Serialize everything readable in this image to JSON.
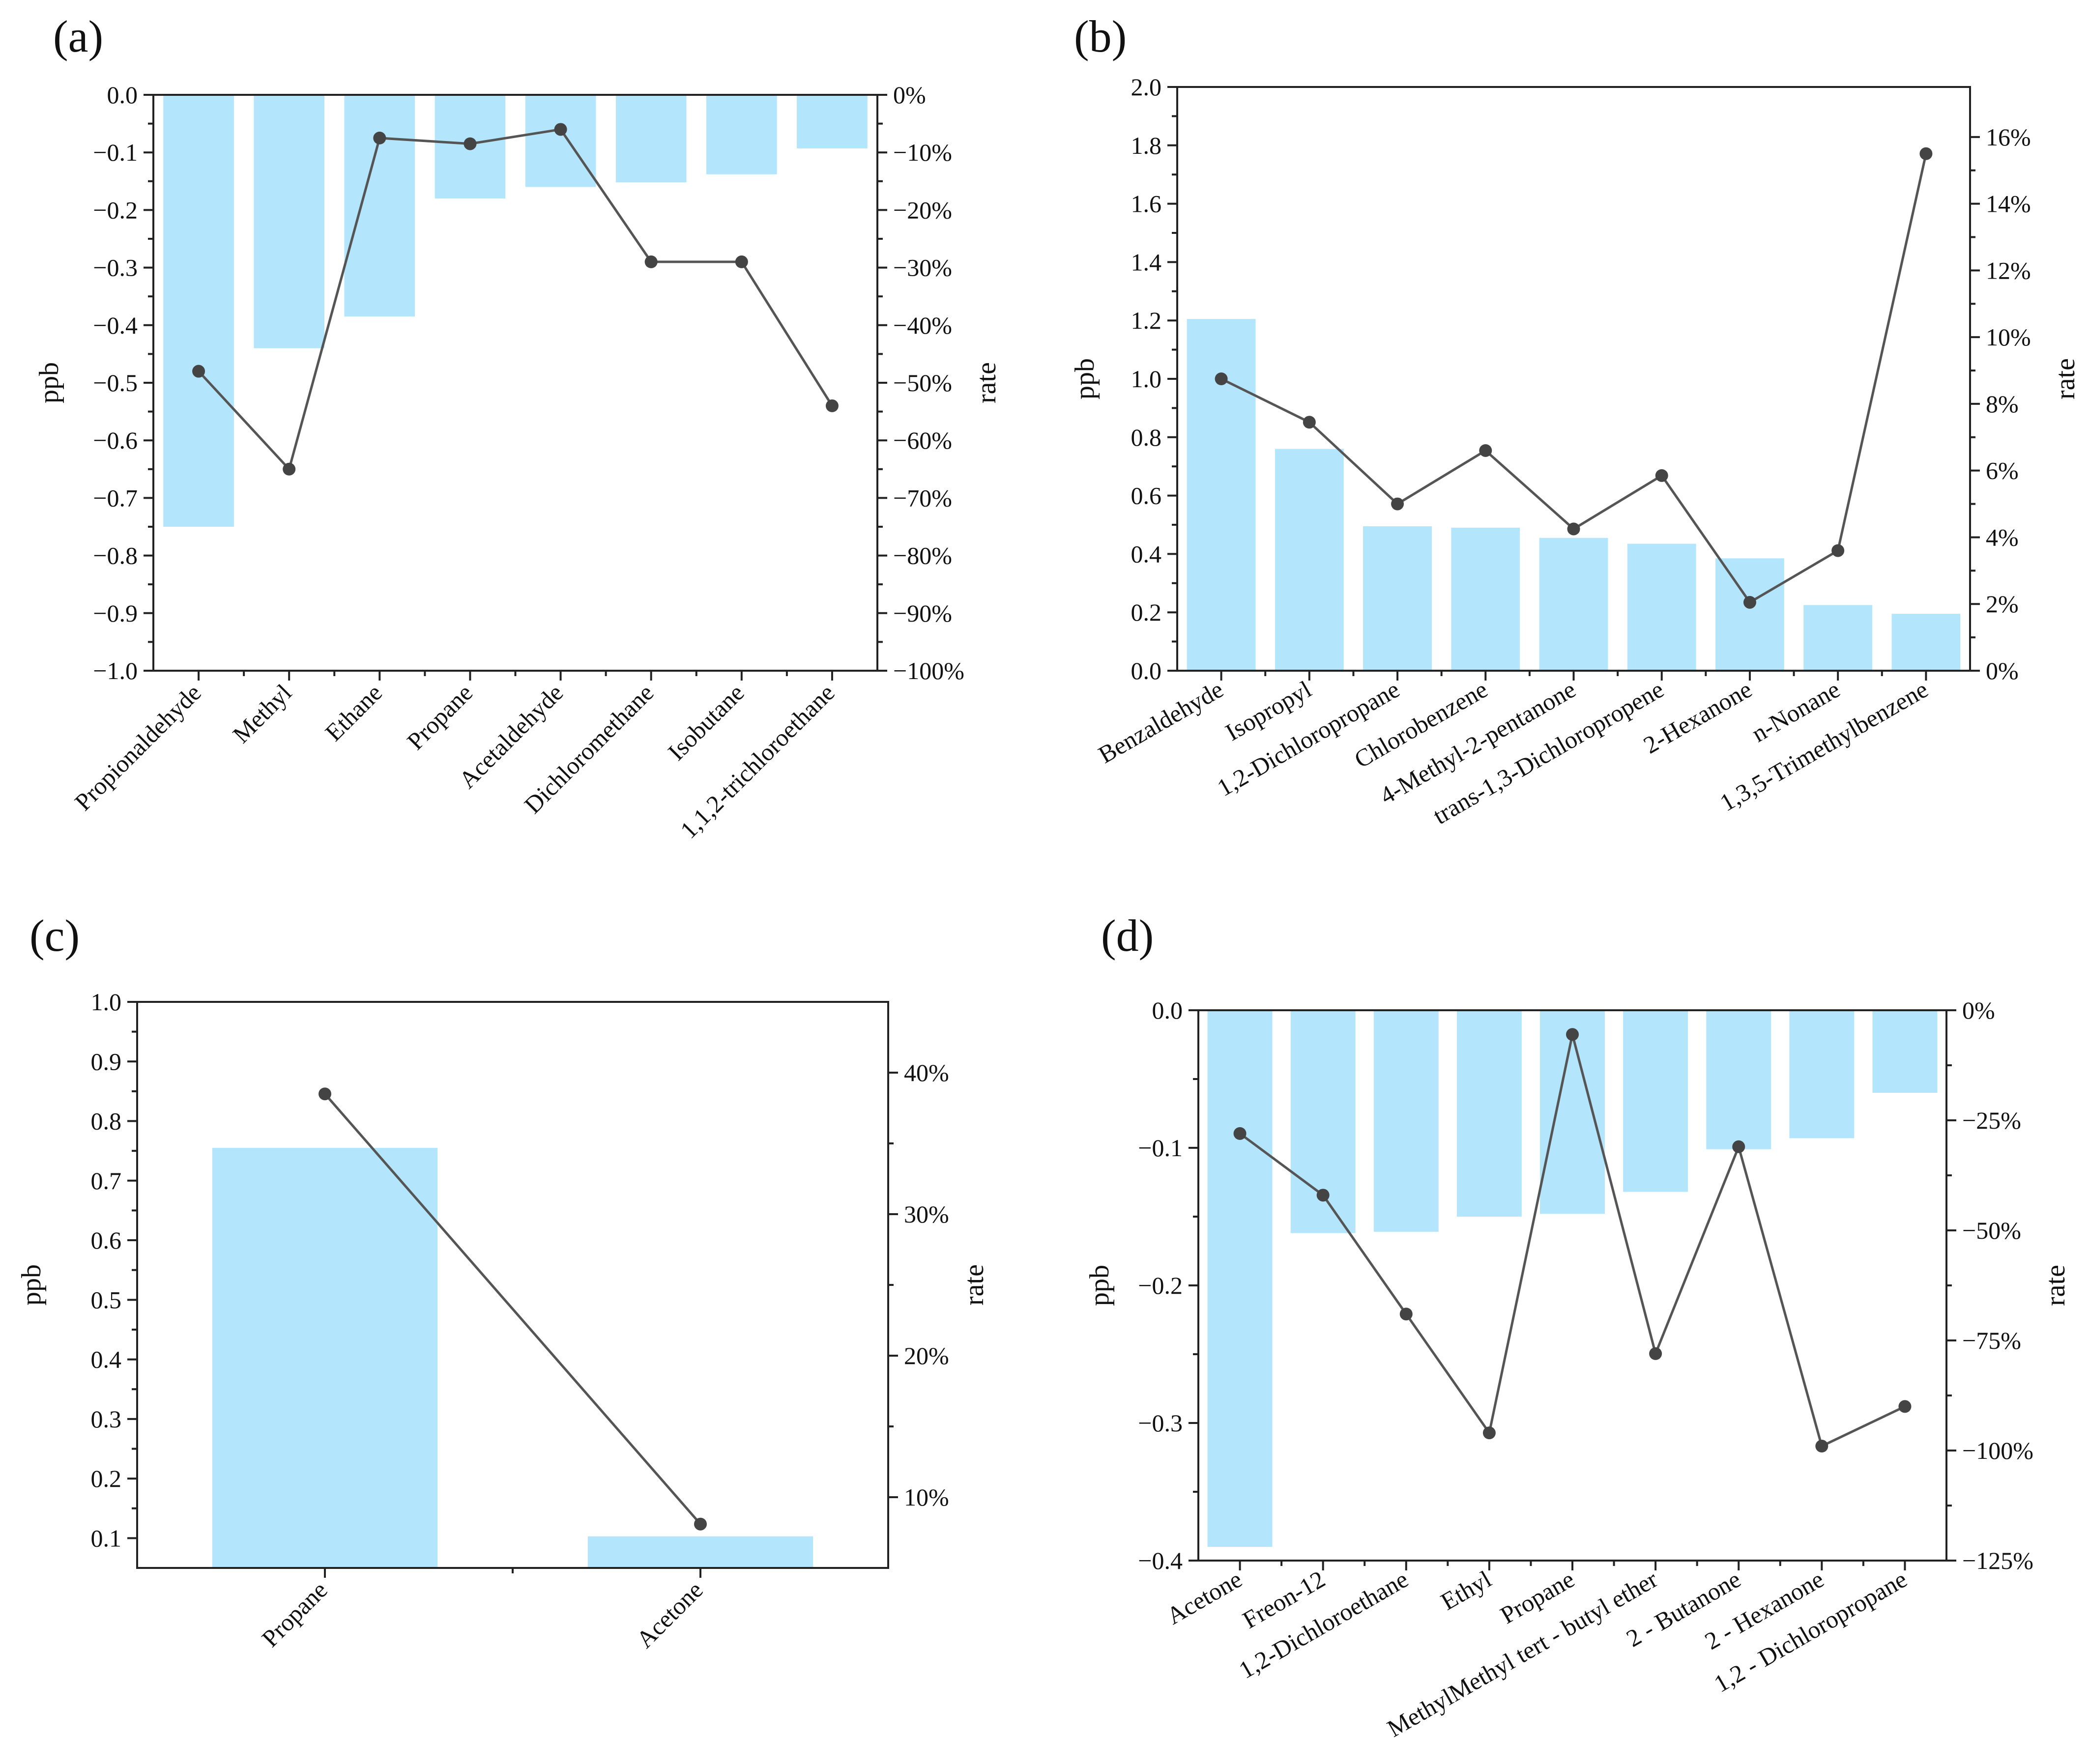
{
  "colors": {
    "bar": "#b3e5fc",
    "line": "#555555",
    "point": "#444444",
    "axis": "#222222"
  },
  "chart_data": [
    {
      "id": "a",
      "panel_label": "(a)",
      "type": "bar+line",
      "ylabel": "ppb",
      "y2label": "rate",
      "ylim": [
        -1.0,
        0.0
      ],
      "yticks": [
        0.0,
        -0.1,
        -0.2,
        -0.3,
        -0.4,
        -0.5,
        -0.6,
        -0.7,
        -0.8,
        -0.9,
        -1.0
      ],
      "ytick_labels": [
        "0.0",
        "−0.1",
        "−0.2",
        "−0.3",
        "−0.4",
        "−0.5",
        "−0.6",
        "−0.7",
        "−0.8",
        "−0.9",
        "−1.0"
      ],
      "y2lim": [
        -100,
        0
      ],
      "y2ticks": [
        0,
        -10,
        -20,
        -30,
        -40,
        -50,
        -60,
        -70,
        -80,
        -90,
        -100
      ],
      "y2tick_labels": [
        "0%",
        "−10%",
        "−20%",
        "−30%",
        "−40%",
        "−50%",
        "−60%",
        "−70%",
        "−80%",
        "−90%",
        "−100%"
      ],
      "categories": [
        "Propionaldehyde",
        "Methyl",
        "Ethane",
        "Propane",
        "Acetaldehyde",
        "Dichloromethane",
        "Isobutane",
        "1,1,2-trichloroethane"
      ],
      "series": [
        {
          "name": "ppb",
          "kind": "bar",
          "axis": "left",
          "values": [
            -0.75,
            -0.44,
            -0.385,
            -0.18,
            -0.16,
            -0.152,
            -0.138,
            -0.093
          ]
        },
        {
          "name": "rate",
          "kind": "line",
          "axis": "right",
          "values": [
            -48,
            -65,
            -7.5,
            -8.5,
            -6,
            -29,
            -29,
            -54
          ]
        }
      ]
    },
    {
      "id": "b",
      "panel_label": "(b)",
      "type": "bar+line",
      "ylabel": "ppb",
      "y2label": "rate",
      "ylim": [
        0,
        2.0
      ],
      "yticks": [
        0.0,
        0.2,
        0.4,
        0.6,
        0.8,
        1.0,
        1.2,
        1.4,
        1.6,
        1.8,
        2.0
      ],
      "ytick_labels": [
        "0.0",
        "0.2",
        "0.4",
        "0.6",
        "0.8",
        "1.0",
        "1.2",
        "1.4",
        "1.6",
        "1.8",
        "2.0"
      ],
      "y2lim": [
        0,
        17.5
      ],
      "y2ticks": [
        0,
        2,
        4,
        6,
        8,
        10,
        12,
        14,
        16
      ],
      "y2tick_labels": [
        "0%",
        "2%",
        "4%",
        "6%",
        "8%",
        "10%",
        "12%",
        "14%",
        "16%"
      ],
      "categories": [
        "Benzaldehyde",
        "Isopropyl",
        "1,2-Dichloropropane",
        "Chlorobenzene",
        "4-Methyl-2-pentanone",
        "trans-1,3-Dichloropropene",
        "2-Hexanone",
        "n-Nonane",
        "1,3,5-Trimethylbenzene"
      ],
      "series": [
        {
          "name": "ppb",
          "kind": "bar",
          "axis": "left",
          "values": [
            1.205,
            0.76,
            0.495,
            0.49,
            0.455,
            0.435,
            0.385,
            0.225,
            0.195
          ]
        },
        {
          "name": "rate",
          "kind": "line",
          "axis": "right",
          "values": [
            8.75,
            7.45,
            5.0,
            6.6,
            4.25,
            5.85,
            2.05,
            3.6,
            15.5
          ]
        }
      ]
    },
    {
      "id": "c",
      "panel_label": "(c)",
      "type": "bar+line",
      "ylabel": "ppb",
      "y2label": "rate",
      "ylim": [
        0.05,
        1.0
      ],
      "yticks": [
        0.1,
        0.2,
        0.3,
        0.4,
        0.5,
        0.6,
        0.7,
        0.8,
        0.9,
        1.0
      ],
      "ytick_labels": [
        "0.1",
        "0.2",
        "0.3",
        "0.4",
        "0.5",
        "0.6",
        "0.7",
        "0.8",
        "0.9",
        "1.0"
      ],
      "y2lim": [
        5,
        45
      ],
      "y2ticks": [
        10,
        20,
        30,
        40
      ],
      "y2tick_labels": [
        "10%",
        "20%",
        "30%",
        "40%"
      ],
      "categories": [
        "Propane",
        "Acetone"
      ],
      "series": [
        {
          "name": "ppb",
          "kind": "bar",
          "axis": "left",
          "values": [
            0.755,
            0.103
          ]
        },
        {
          "name": "rate",
          "kind": "line",
          "axis": "right",
          "values": [
            38.5,
            8.1
          ]
        }
      ]
    },
    {
      "id": "d",
      "panel_label": "(d)",
      "type": "bar+line",
      "ylabel": "ppb",
      "y2label": "rate",
      "ylim": [
        -0.4,
        0.0
      ],
      "yticks": [
        0.0,
        -0.1,
        -0.2,
        -0.3,
        -0.4
      ],
      "ytick_labels": [
        "0.0",
        "−0.1",
        "−0.2",
        "−0.3",
        "−0.4"
      ],
      "y2lim": [
        -125,
        0
      ],
      "y2ticks": [
        0,
        -25,
        -50,
        -75,
        -100,
        -125
      ],
      "y2tick_labels": [
        "0%",
        "−25%",
        "−50%",
        "−75%",
        "−100%",
        "−125%"
      ],
      "categories": [
        "Acetone",
        "Freon-12",
        "1,2-Dichloroethane",
        "Ethyl",
        "Propane",
        "MethylMethyl tert - butyl ether",
        "2 - Butanone",
        "2 - Hexanone",
        "1,2 - Dichloropropane"
      ],
      "series": [
        {
          "name": "ppb",
          "kind": "bar",
          "axis": "left",
          "values": [
            -0.39,
            -0.162,
            -0.161,
            -0.15,
            -0.148,
            -0.132,
            -0.101,
            -0.093,
            -0.06
          ]
        },
        {
          "name": "rate",
          "kind": "line",
          "axis": "right",
          "values": [
            -28,
            -42,
            -69,
            -96,
            -5.5,
            -78,
            -31,
            -99,
            -90
          ]
        }
      ]
    }
  ]
}
